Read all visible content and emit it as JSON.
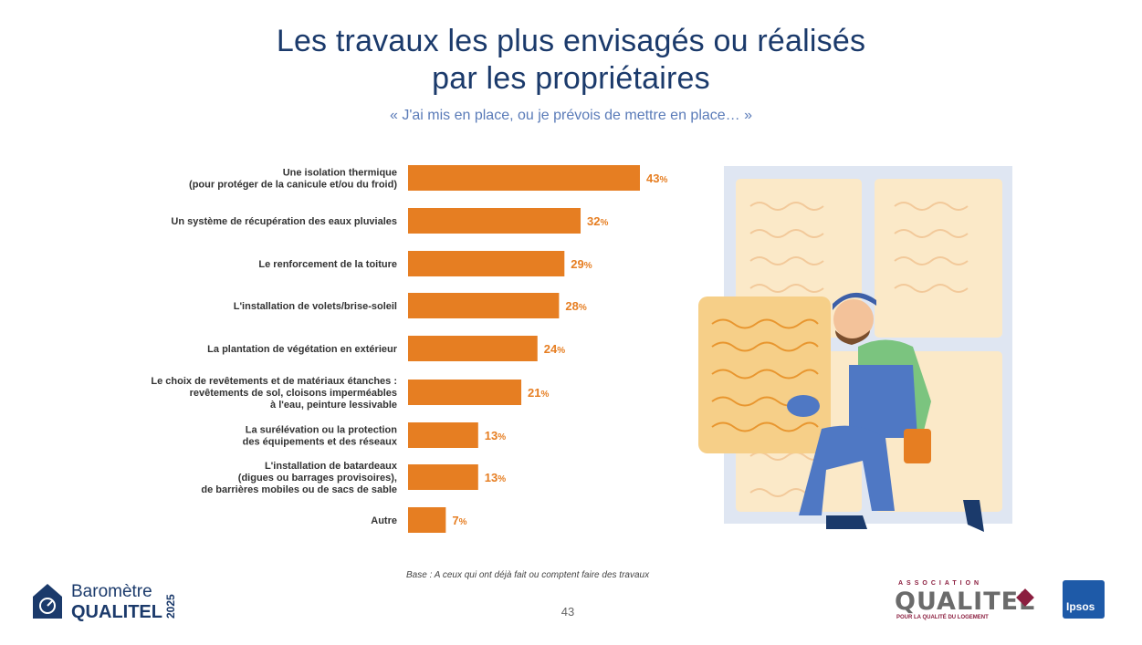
{
  "title_line1": "Les travaux les plus envisagés ou réalisés",
  "title_line2": "par les propriétaires",
  "subtitle": "« J'ai mis en place, ou je prévois de mettre en place… »",
  "base_note": "Base : A ceux qui ont déjà fait ou comptent faire des travaux",
  "page_number": "43",
  "logos": {
    "barometre_line1": "Baromètre",
    "barometre_line2": "QUALITEL",
    "barometre_year": "2025",
    "association_label": "ASSOCIATION",
    "qualitel": "QUALITEL",
    "qualitel_tagline": "POUR LA QUALITÉ DU LOGEMENT",
    "ipsos": "Ipsos"
  },
  "colors": {
    "bar": "#e67e22",
    "title": "#1b3a6b",
    "subtitle": "#5a7bb8"
  },
  "chart_data": {
    "type": "bar",
    "orientation": "horizontal",
    "title": "Les travaux les plus envisagés ou réalisés par les propriétaires",
    "xlabel": "",
    "ylabel": "",
    "xlim": [
      0,
      43
    ],
    "unit": "%",
    "categories": [
      [
        "Une isolation thermique",
        "(pour protéger de la canicule et/ou du froid)"
      ],
      [
        "Un système de récupération des eaux pluviales"
      ],
      [
        "Le renforcement de la toiture"
      ],
      [
        "L'installation de volets/brise-soleil"
      ],
      [
        "La plantation de végétation en extérieur"
      ],
      [
        "Le choix de revêtements et de matériaux étanches :",
        "revêtements de sol, cloisons imperméables",
        "à l'eau, peinture lessivable"
      ],
      [
        "La surélévation ou la protection",
        "des équipements et des réseaux"
      ],
      [
        "L'installation de batardeaux",
        "(digues ou barrages provisoires),",
        "de barrières mobiles ou de sacs de sable"
      ],
      [
        "Autre"
      ]
    ],
    "values": [
      43,
      32,
      29,
      28,
      24,
      21,
      13,
      13,
      7
    ]
  }
}
